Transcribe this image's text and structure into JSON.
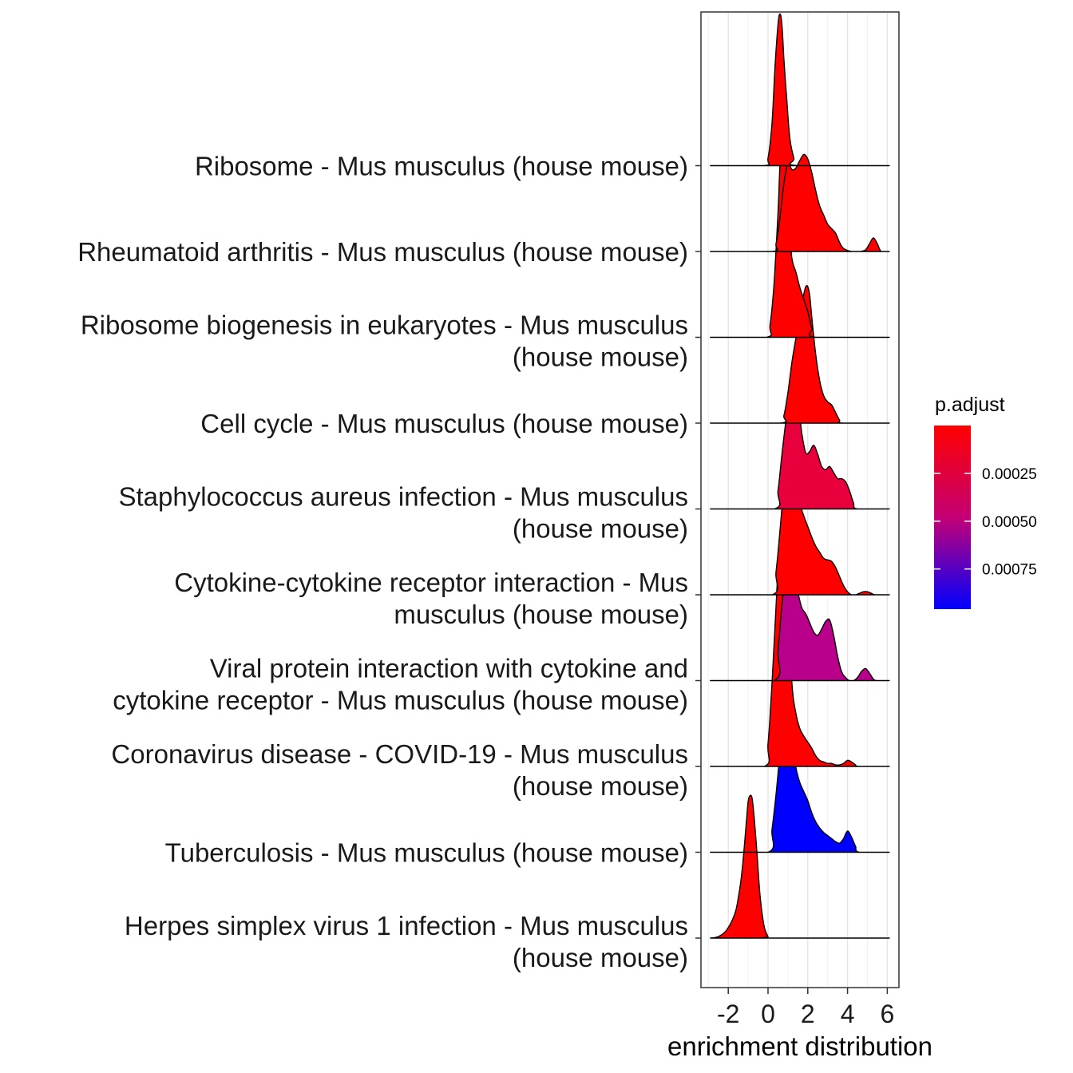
{
  "chart_data": {
    "type": "ridgeline",
    "xlabel": "enrichment distribution",
    "xlim": [
      -3.4,
      6.6
    ],
    "x_ticks": [
      -2,
      0,
      2,
      4,
      6
    ],
    "x_tick_labels": [
      "-2",
      "0",
      "2",
      "4",
      "6"
    ],
    "legend": {
      "title": "p.adjust",
      "placement": "right",
      "range": [
        0.0,
        0.00096
      ],
      "ticks": [
        0.00025,
        0.0005,
        0.00075
      ],
      "tick_labels": [
        "0.00025",
        "0.00050",
        "0.00075"
      ],
      "low_color": "#ff0000",
      "high_color": "#0000ff"
    },
    "series": [
      {
        "name": "Ribosome - Mus musculus (house mouse)",
        "label_lines": [
          "Ribosome - Mus musculus (house mouse)"
        ],
        "p_adjust": 1e-07,
        "color": "#ff0000",
        "x": [
          -2.9,
          -0.2,
          0.0,
          0.2,
          0.35,
          0.5,
          0.6,
          0.7,
          0.8,
          0.95,
          1.1,
          1.3,
          1.5,
          6.1
        ],
        "density": [
          0,
          0,
          0.05,
          0.28,
          0.65,
          0.93,
          1.0,
          0.93,
          0.7,
          0.42,
          0.18,
          0.05,
          0,
          0
        ]
      },
      {
        "name": "Rheumatoid arthritis - Mus musculus (house mouse)",
        "label_lines": [
          "Rheumatoid arthritis - Mus musculus (house mouse)"
        ],
        "p_adjust": 3e-07,
        "color": "#ff0000",
        "x": [
          -2.9,
          0.2,
          0.4,
          0.6,
          0.8,
          1.0,
          1.2,
          1.4,
          1.6,
          1.8,
          2.0,
          2.2,
          2.4,
          2.6,
          2.8,
          3.0,
          3.2,
          3.4,
          3.6,
          3.8,
          4.2,
          4.6,
          4.9,
          5.1,
          5.3,
          5.5,
          5.7,
          6.1
        ],
        "density": [
          0,
          0,
          0.05,
          0.22,
          0.45,
          0.58,
          0.54,
          0.55,
          0.6,
          0.64,
          0.61,
          0.52,
          0.4,
          0.3,
          0.24,
          0.18,
          0.15,
          0.12,
          0.06,
          0.02,
          0.0,
          0.0,
          0.01,
          0.05,
          0.09,
          0.05,
          0.0,
          0
        ]
      },
      {
        "name": "Ribosome biogenesis in eukaryotes - Mus musculus (house mouse)",
        "label_lines": [
          "Ribosome biogenesis in eukaryotes - Mus musculus",
          "(house mouse)"
        ],
        "p_adjust": 2e-07,
        "color": "#ff0000",
        "x": [
          -2.9,
          -0.1,
          0.1,
          0.3,
          0.5,
          0.6,
          0.7,
          0.8,
          0.9,
          1.0,
          1.1,
          1.2,
          1.4,
          1.6,
          1.8,
          2.0,
          2.2,
          2.4,
          6.1
        ],
        "density": [
          0,
          0,
          0.08,
          0.35,
          0.82,
          1.13,
          1.28,
          1.37,
          1.3,
          1.04,
          0.72,
          0.52,
          0.43,
          0.33,
          0.25,
          0.17,
          0.06,
          0,
          0
        ]
      },
      {
        "name": "Cell cycle - Mus musculus (house mouse)",
        "label_lines": [
          "Cell cycle - Mus musculus (house mouse)"
        ],
        "p_adjust": 2e-07,
        "color": "#ff0000",
        "x": [
          -2.9,
          0.6,
          0.8,
          1.0,
          1.2,
          1.4,
          1.6,
          1.8,
          1.9,
          2.0,
          2.1,
          2.2,
          2.4,
          2.6,
          2.8,
          3.0,
          3.2,
          3.4,
          3.6,
          3.8,
          6.1
        ],
        "density": [
          0,
          0,
          0.05,
          0.2,
          0.4,
          0.56,
          0.72,
          0.85,
          0.9,
          0.9,
          0.84,
          0.7,
          0.45,
          0.28,
          0.18,
          0.14,
          0.12,
          0.07,
          0.02,
          0,
          0
        ]
      },
      {
        "name": "Staphylococcus aureus infection - Mus musculus (house mouse)",
        "label_lines": [
          "Staphylococcus aureus infection - Mus musculus",
          "(house mouse)"
        ],
        "p_adjust": 0.00017,
        "color": "#e8003c",
        "x": [
          -2.9,
          0.3,
          0.5,
          0.7,
          0.9,
          1.1,
          1.3,
          1.5,
          1.7,
          1.9,
          2.1,
          2.3,
          2.5,
          2.7,
          2.9,
          3.1,
          3.3,
          3.5,
          3.7,
          3.9,
          4.1,
          4.3,
          4.5,
          6.1
        ],
        "density": [
          0,
          0,
          0.12,
          0.36,
          0.58,
          0.73,
          0.78,
          0.72,
          0.5,
          0.37,
          0.38,
          0.42,
          0.36,
          0.28,
          0.26,
          0.28,
          0.24,
          0.2,
          0.2,
          0.18,
          0.12,
          0.04,
          0,
          0
        ]
      },
      {
        "name": "Cytokine-cytokine receptor interaction - Mus musculus (house mouse)",
        "label_lines": [
          "Cytokine-cytokine receptor interaction - Mus",
          "musculus (house mouse)"
        ],
        "p_adjust": 3e-07,
        "color": "#ff0000",
        "x": [
          -2.9,
          0.2,
          0.4,
          0.6,
          0.8,
          1.0,
          1.1,
          1.2,
          1.4,
          1.6,
          1.8,
          2.0,
          2.2,
          2.4,
          2.6,
          2.8,
          3.0,
          3.2,
          3.4,
          3.6,
          3.8,
          4.0,
          4.2,
          4.4,
          4.6,
          4.8,
          5.0,
          5.2,
          5.4,
          6.1
        ],
        "density": [
          0,
          0,
          0.15,
          0.42,
          0.72,
          0.88,
          0.9,
          0.86,
          0.72,
          0.6,
          0.52,
          0.45,
          0.38,
          0.32,
          0.28,
          0.24,
          0.23,
          0.22,
          0.18,
          0.12,
          0.06,
          0.02,
          0.0,
          0.0,
          0.01,
          0.02,
          0.02,
          0.01,
          0,
          0
        ]
      },
      {
        "name": "Viral protein interaction with cytokine and cytokine receptor - Mus musculus (house mouse)",
        "label_lines": [
          "Viral protein interaction with cytokine and",
          "cytokine receptor - Mus musculus (house mouse)"
        ],
        "p_adjust": 0.00054,
        "color": "#b8008a",
        "x": [
          -2.9,
          0.3,
          0.5,
          0.7,
          0.9,
          1.0,
          1.1,
          1.2,
          1.3,
          1.5,
          1.7,
          1.9,
          2.1,
          2.3,
          2.5,
          2.7,
          2.9,
          3.1,
          3.3,
          3.5,
          3.7,
          3.9,
          4.1,
          4.3,
          4.5,
          4.7,
          4.9,
          5.1,
          5.3,
          5.5,
          6.1
        ],
        "density": [
          0,
          0,
          0.2,
          0.5,
          0.72,
          0.76,
          0.74,
          0.7,
          0.68,
          0.58,
          0.48,
          0.44,
          0.38,
          0.32,
          0.3,
          0.34,
          0.39,
          0.4,
          0.3,
          0.16,
          0.06,
          0.02,
          0.0,
          0.0,
          0.02,
          0.06,
          0.08,
          0.05,
          0.01,
          0,
          0
        ]
      },
      {
        "name": "Coronavirus disease - COVID-19 - Mus musculus (house mouse)",
        "label_lines": [
          "Coronavirus disease - COVID-19 - Mus musculus",
          "(house mouse)"
        ],
        "p_adjust": 1e-07,
        "color": "#ff0000",
        "x": [
          -2.9,
          -0.2,
          0.0,
          0.2,
          0.4,
          0.5,
          0.6,
          0.7,
          0.8,
          0.9,
          1.0,
          1.2,
          1.4,
          1.6,
          1.8,
          2.0,
          2.2,
          2.4,
          2.6,
          2.8,
          3.0,
          3.2,
          3.4,
          3.6,
          3.8,
          4.0,
          4.2,
          4.4,
          4.6,
          6.1
        ],
        "density": [
          0,
          0,
          0.15,
          0.55,
          1.05,
          1.3,
          1.48,
          1.55,
          1.52,
          1.38,
          1.1,
          0.55,
          0.35,
          0.25,
          0.2,
          0.16,
          0.12,
          0.07,
          0.04,
          0.03,
          0.02,
          0.02,
          0.01,
          0.01,
          0.02,
          0.04,
          0.03,
          0.01,
          0,
          0
        ]
      },
      {
        "name": "Tuberculosis - Mus musculus (house mouse)",
        "label_lines": [
          "Tuberculosis - Mus musculus (house mouse)"
        ],
        "p_adjust": 0.00096,
        "color": "#0000ff",
        "x": [
          -2.9,
          0.0,
          0.2,
          0.4,
          0.6,
          0.8,
          0.9,
          1.0,
          1.2,
          1.4,
          1.6,
          1.8,
          2.0,
          2.2,
          2.4,
          2.6,
          2.8,
          3.0,
          3.2,
          3.4,
          3.6,
          3.8,
          4.0,
          4.2,
          4.4,
          4.6,
          6.1
        ],
        "density": [
          0,
          0,
          0.15,
          0.38,
          0.64,
          0.8,
          0.83,
          0.82,
          0.74,
          0.56,
          0.46,
          0.4,
          0.34,
          0.26,
          0.2,
          0.16,
          0.13,
          0.11,
          0.09,
          0.07,
          0.06,
          0.09,
          0.14,
          0.1,
          0.04,
          0,
          0
        ]
      },
      {
        "name": "Herpes simplex virus 1 infection - Mus musculus (house mouse)",
        "label_lines": [
          "Herpes simplex virus 1 infection - Mus musculus",
          "(house mouse)"
        ],
        "p_adjust": 1e-07,
        "color": "#ff0000",
        "x": [
          -2.9,
          -2.5,
          -2.1,
          -1.7,
          -1.5,
          -1.3,
          -1.1,
          -1.0,
          -0.9,
          -0.8,
          -0.7,
          -0.55,
          -0.4,
          -0.2,
          0.0,
          0.1,
          6.1
        ],
        "density": [
          0,
          0.01,
          0.05,
          0.15,
          0.26,
          0.45,
          0.75,
          0.9,
          0.94,
          0.92,
          0.8,
          0.55,
          0.28,
          0.08,
          0.01,
          0,
          0
        ]
      }
    ]
  }
}
